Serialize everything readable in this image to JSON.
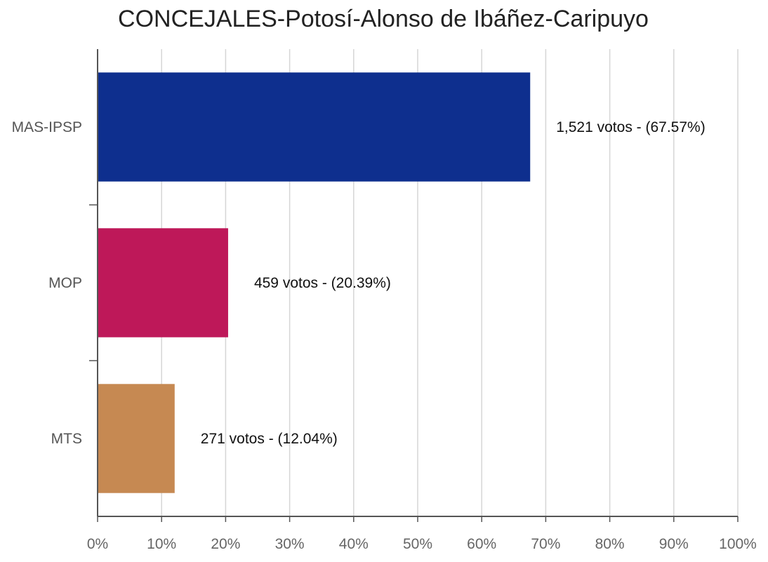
{
  "chart_data": {
    "type": "bar",
    "orientation": "horizontal",
    "title": "CONCEJALES-Potosí-Alonso de Ibáñez-Caripuyo",
    "categories": [
      "MAS-IPSP",
      "MOP",
      "MTS"
    ],
    "values": [
      67.57,
      20.39,
      12.04
    ],
    "votes": [
      1521,
      459,
      271
    ],
    "data_labels": [
      "1,521 votos - (67.57%)",
      "459 votos - (20.39%)",
      "271 votos - (12.04%)"
    ],
    "colors": [
      "#0E2F8E",
      "#BE1859",
      "#C68952"
    ],
    "xlim": [
      0,
      100
    ],
    "x_ticks": [
      "0%",
      "10%",
      "20%",
      "30%",
      "40%",
      "50%",
      "60%",
      "70%",
      "80%",
      "90%",
      "100%"
    ],
    "xlabel": "",
    "ylabel": "",
    "grid": true,
    "legend": "none"
  }
}
